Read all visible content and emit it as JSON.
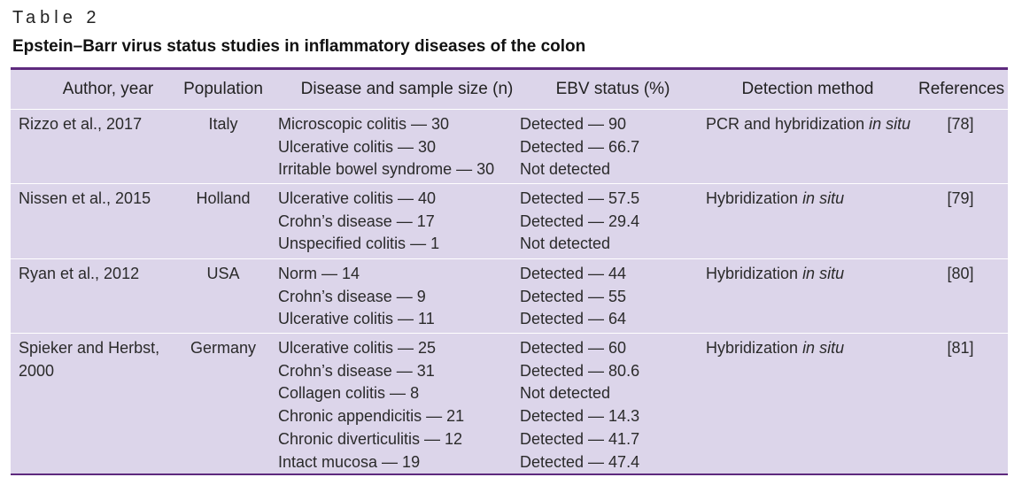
{
  "table_label": "Table 2",
  "table_title": "Epstein–Barr virus status studies in inflammatory diseases of the colon",
  "headers": [
    "Author, year",
    "Population",
    "Disease and sample size (n)",
    "EBV status (%)",
    "Detection method",
    "References"
  ],
  "rows": [
    {
      "author": "Rizzo et al., 2017",
      "population": "Italy",
      "diseases": [
        "Microscopic colitis — 30",
        "Ulcerative colitis — 30",
        "Irritable bowel syndrome — 30"
      ],
      "status": [
        "Detected — 90",
        "Detected — 66.7",
        "Not detected"
      ],
      "method_prefix": "PCR and hybridization",
      "method_italic": "in situ",
      "ref": "[78]"
    },
    {
      "author": "Nissen et al., 2015",
      "population": "Holland",
      "diseases": [
        "Ulcerative colitis — 40",
        "Crohn’s disease — 17",
        "Unspecified colitis — 1"
      ],
      "status": [
        "Detected — 57.5",
        "Detected — 29.4",
        "Not detected"
      ],
      "method_prefix": "Hybridization",
      "method_italic": "in situ",
      "ref": "[79]"
    },
    {
      "author": "Ryan et al., 2012",
      "population": "USA",
      "diseases": [
        "Norm — 14",
        "Crohn’s disease — 9",
        "Ulcerative colitis — 11"
      ],
      "status": [
        "Detected — 44",
        "Detected — 55",
        "Detected — 64"
      ],
      "method_prefix": "Hybridization",
      "method_italic": "in situ",
      "ref": "[80]"
    },
    {
      "author_lines": [
        "Spieker and Herbst,",
        "2000"
      ],
      "population": "Germany",
      "diseases": [
        "Ulcerative colitis — 25",
        "Crohn’s disease — 31",
        "Collagen colitis — 8",
        "Chronic appendicitis — 21",
        "Chronic diverticulitis — 12",
        "Intact mucosa — 19"
      ],
      "status": [
        "Detected — 60",
        "Detected — 80.6",
        "Not detected",
        "Detected — 14.3",
        "Detected — 41.7",
        "Detected — 47.4"
      ],
      "method_prefix": "Hybridization",
      "method_italic": "in situ",
      "ref": "[81]"
    }
  ],
  "colors": {
    "rule": "#5e2a7e",
    "table_bg": "#dcd5ea",
    "row_separator": "#ffffff"
  }
}
